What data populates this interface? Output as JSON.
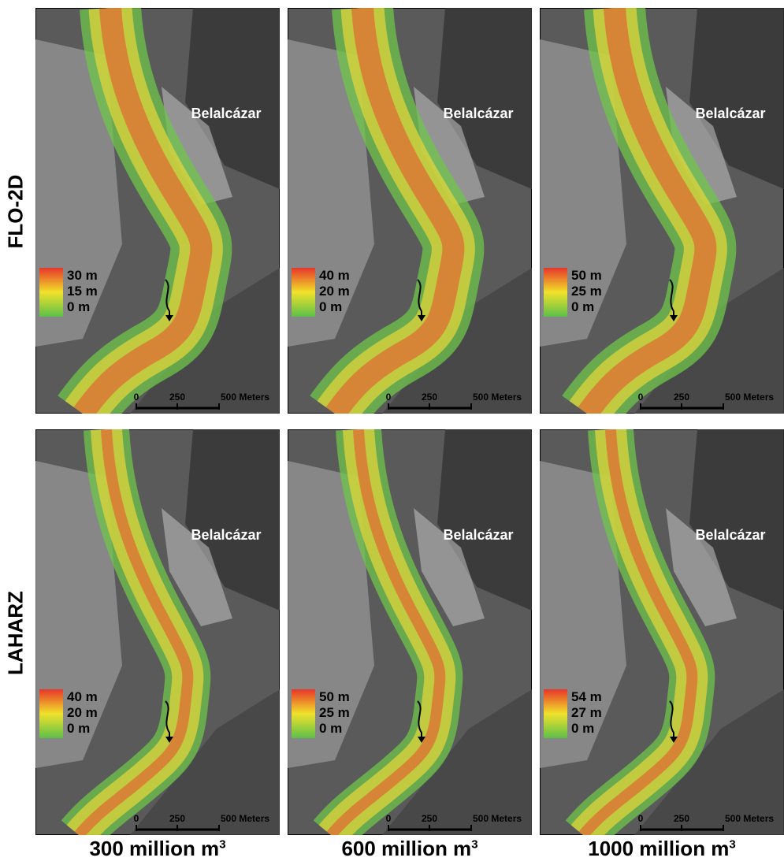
{
  "row_labels": [
    "FLO-2D",
    "LAHARZ"
  ],
  "column_labels": [
    {
      "text": "300 million m",
      "superscript": "3"
    },
    {
      "text": "600 million m",
      "superscript": "3"
    },
    {
      "text": "1000 million m",
      "superscript": "3"
    }
  ],
  "panels": [
    {
      "town": "Belalcázar",
      "legend": [
        "30 m",
        "15 m",
        "0 m"
      ],
      "scale": [
        "0",
        "250",
        "500 Meters"
      ]
    },
    {
      "town": "Belalcázar",
      "legend": [
        "40 m",
        "20 m",
        "0 m"
      ],
      "scale": [
        "0",
        "250",
        "500 Meters"
      ]
    },
    {
      "town": "Belalcázar",
      "legend": [
        "50 m",
        "25 m",
        "0 m"
      ],
      "scale": [
        "0",
        "250",
        "500 Meters"
      ]
    },
    {
      "town": "Belalcázar",
      "legend": [
        "40 m",
        "20 m",
        "0 m"
      ],
      "scale": [
        "0",
        "250",
        "500 Meters"
      ]
    },
    {
      "town": "Belalcázar",
      "legend": [
        "50 m",
        "25 m",
        "0 m"
      ],
      "scale": [
        "0",
        "250",
        "500 Meters"
      ]
    },
    {
      "town": "Belalcázar",
      "legend": [
        "54 m",
        "27 m",
        "0 m"
      ],
      "scale": [
        "0",
        "250",
        "500 Meters"
      ]
    }
  ]
}
